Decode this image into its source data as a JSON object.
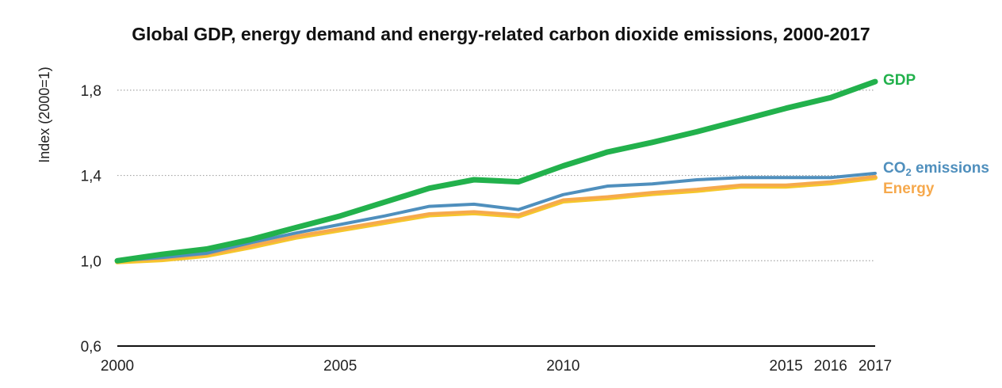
{
  "chart_data": {
    "type": "line",
    "title": "Global GDP, energy demand and energy-related carbon dioxide emissions, 2000-2017",
    "xlabel": "",
    "ylabel": "Index (2000=1)",
    "xlim": [
      2000,
      2017
    ],
    "ylim": [
      0.6,
      2.0
    ],
    "y_ticks": [
      0.6,
      1.0,
      1.4,
      1.8
    ],
    "y_tick_labels": [
      "0,6",
      "1,0",
      "1,4",
      "1,8"
    ],
    "x_ticks": [
      2000,
      2005,
      2010,
      2015,
      2016,
      2017
    ],
    "x_tick_labels": [
      "2000",
      "2005",
      "2010",
      "2015",
      "2016",
      "2017"
    ],
    "grid": true,
    "legend": "labels at line ends (right)",
    "x": [
      2000,
      2001,
      2002,
      2003,
      2004,
      2005,
      2006,
      2007,
      2008,
      2009,
      2010,
      2011,
      2012,
      2013,
      2014,
      2015,
      2016,
      2017
    ],
    "series": [
      {
        "name": "GDP",
        "color": "#22b14c",
        "values": [
          1.0,
          1.03,
          1.055,
          1.1,
          1.155,
          1.21,
          1.275,
          1.34,
          1.38,
          1.37,
          1.445,
          1.51,
          1.555,
          1.605,
          1.66,
          1.715,
          1.765,
          1.84
        ]
      },
      {
        "name_main": "CO",
        "name_sub": "2",
        "name_tail": " emissions",
        "color": "#4f8fbd",
        "values": [
          1.0,
          1.015,
          1.035,
          1.085,
          1.13,
          1.17,
          1.21,
          1.255,
          1.265,
          1.24,
          1.31,
          1.35,
          1.36,
          1.38,
          1.39,
          1.39,
          1.39,
          1.41
        ]
      },
      {
        "name": "Energy",
        "color": "#f6a94d",
        "values": [
          1.0,
          1.01,
          1.03,
          1.07,
          1.115,
          1.15,
          1.185,
          1.22,
          1.23,
          1.215,
          1.285,
          1.3,
          1.32,
          1.335,
          1.355,
          1.355,
          1.37,
          1.395
        ]
      }
    ],
    "energy_under_color": "#f5c62c"
  }
}
